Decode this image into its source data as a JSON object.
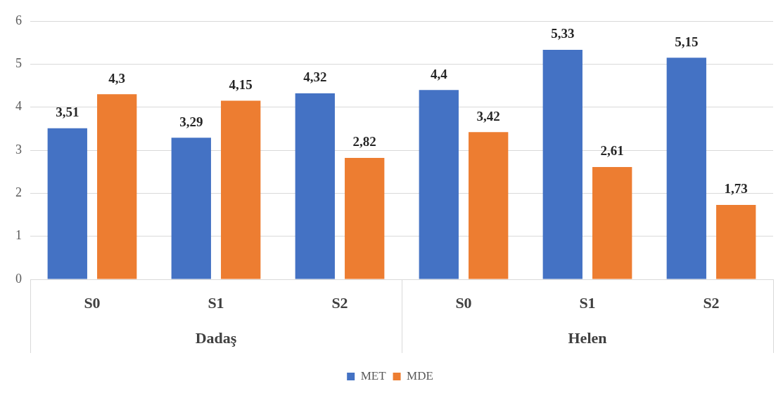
{
  "chart_data": {
    "type": "bar",
    "categories": [
      "S0",
      "S1",
      "S2",
      "S0",
      "S1",
      "S2"
    ],
    "series": [
      {
        "name": "MET",
        "color": "#4472c4",
        "values": [
          3.51,
          3.29,
          4.32,
          4.4,
          5.33,
          5.15
        ],
        "value_labels": [
          "3,51",
          "3,29",
          "4,32",
          "4,4",
          "5,33",
          "5,15"
        ]
      },
      {
        "name": "MDE",
        "color": "#ed7d31",
        "values": [
          4.3,
          4.15,
          2.82,
          3.42,
          2.61,
          1.73
        ],
        "value_labels": [
          "4,3",
          "4,15",
          "2,82",
          "3,42",
          "2,61",
          "1,73"
        ]
      }
    ],
    "annotations": [
      "Dadaş",
      "Helen"
    ],
    "ylim": [
      0,
      6
    ],
    "yticks": [
      0,
      1,
      2,
      3,
      4,
      5,
      6
    ],
    "grid": "y",
    "legend": "bottom"
  }
}
